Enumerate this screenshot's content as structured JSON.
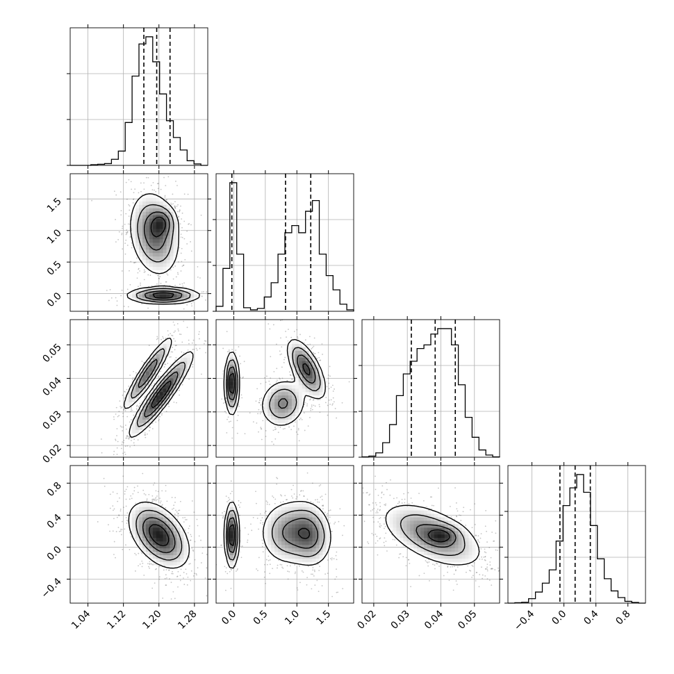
{
  "chart_data": {
    "type": "corner",
    "grid": true,
    "colors": {
      "lines": "#000000",
      "points": "#555555",
      "grid": "#b0b0b0",
      "background": "#ffffff"
    },
    "parameters": [
      {
        "id": "p0",
        "range": [
          1.0,
          1.31
        ],
        "ticks": [
          1.04,
          1.12,
          1.2,
          1.28
        ],
        "tick_labels": [
          "1.04",
          "1.12",
          "1.20",
          "1.28"
        ],
        "quantiles": [
          1.166,
          1.195,
          1.225
        ]
      },
      {
        "id": "p1",
        "range": [
          -0.28,
          1.9
        ],
        "ticks": [
          0.0,
          0.5,
          1.0,
          1.5
        ],
        "tick_labels": [
          "0.0",
          "0.5",
          "1.0",
          "1.5"
        ],
        "quantiles": [
          -0.03,
          0.82,
          1.22
        ]
      },
      {
        "id": "p2",
        "range": [
          0.0165,
          0.0575
        ],
        "ticks": [
          0.02,
          0.03,
          0.04,
          0.05
        ],
        "tick_labels": [
          "0.02",
          "0.03",
          "0.04",
          "0.05"
        ],
        "quantiles": [
          0.0312,
          0.0383,
          0.0443
        ]
      },
      {
        "id": "p3",
        "range": [
          -0.7,
          1.02
        ],
        "ticks": [
          -0.4,
          0.0,
          0.4,
          0.8
        ],
        "tick_labels": [
          "−0.4",
          "0.0",
          "0.4",
          "0.8"
        ],
        "quantiles": [
          -0.05,
          0.14,
          0.33
        ]
      }
    ],
    "histograms": [
      {
        "param": "p0",
        "bin_edges": [
          1.0,
          1.0155,
          1.031,
          1.0465,
          1.062,
          1.0775,
          1.093,
          1.1085,
          1.124,
          1.1395,
          1.155,
          1.1705,
          1.186,
          1.2015,
          1.217,
          1.2325,
          1.248,
          1.2635,
          1.279,
          1.2945,
          1.31
        ],
        "counts": [
          0,
          0,
          0,
          2,
          3,
          5,
          17,
          40,
          120,
          250,
          340,
          360,
          290,
          200,
          125,
          78,
          43,
          13,
          4,
          0
        ]
      },
      {
        "param": "p1",
        "bin_edges": [
          -0.28,
          -0.171,
          -0.062,
          0.047,
          0.156,
          0.265,
          0.374,
          0.483,
          0.592,
          0.701,
          0.81,
          0.919,
          1.028,
          1.137,
          1.246,
          1.355,
          1.464,
          1.573,
          1.682,
          1.791,
          1.9
        ],
        "counts": [
          7,
          60,
          180,
          80,
          5,
          2,
          4,
          20,
          40,
          80,
          110,
          120,
          110,
          140,
          155,
          80,
          50,
          30,
          10,
          2
        ]
      },
      {
        "param": "p2",
        "bin_edges": [
          0.0165,
          0.01855,
          0.0206,
          0.02265,
          0.0247,
          0.02675,
          0.0288,
          0.03085,
          0.0329,
          0.03495,
          0.037,
          0.03905,
          0.0411,
          0.04315,
          0.0452,
          0.04725,
          0.0493,
          0.05135,
          0.0534,
          0.05545,
          0.0575
        ],
        "counts": [
          1,
          3,
          12,
          40,
          90,
          170,
          230,
          265,
          300,
          310,
          340,
          355,
          355,
          310,
          200,
          110,
          55,
          20,
          6,
          1
        ]
      },
      {
        "param": "p3",
        "bin_edges": [
          -0.7,
          -0.614,
          -0.528,
          -0.442,
          -0.356,
          -0.27,
          -0.184,
          -0.098,
          -0.012,
          0.074,
          0.16,
          0.246,
          0.332,
          0.418,
          0.504,
          0.59,
          0.676,
          0.762,
          0.848,
          0.934,
          1.02
        ],
        "counts": [
          0,
          2,
          4,
          20,
          50,
          90,
          150,
          280,
          440,
          520,
          580,
          500,
          350,
          200,
          110,
          55,
          25,
          8,
          3,
          0
        ]
      }
    ],
    "pairs": [
      {
        "x": "p0",
        "y": "p1",
        "blobs": [
          {
            "cx": 1.19,
            "cy": 0.95,
            "sx": 0.028,
            "sy": 0.33,
            "rho": -0.2,
            "peak": 0.75
          },
          {
            "cx": 1.208,
            "cy": 1.13,
            "sx": 0.016,
            "sy": 0.13,
            "rho": 0.0,
            "peak": 0.45
          },
          {
            "cx": 1.21,
            "cy": -0.03,
            "sx": 0.04,
            "sy": 0.065,
            "rho": 0.0,
            "peak": 1.0
          }
        ]
      },
      {
        "x": "p0",
        "y": "p2",
        "blobs": [
          {
            "cx": 1.205,
            "cy": 0.0352,
            "sx": 0.035,
            "sy": 0.0062,
            "rho": 0.92,
            "peak": 1.0
          },
          {
            "cx": 1.175,
            "cy": 0.0415,
            "sx": 0.028,
            "sy": 0.0055,
            "rho": 0.92,
            "peak": 0.75
          }
        ]
      },
      {
        "x": "p1",
        "y": "p2",
        "blobs": [
          {
            "cx": -0.03,
            "cy": 0.0385,
            "sx": 0.055,
            "sy": 0.0045,
            "rho": 0.0,
            "peak": 1.0
          },
          {
            "cx": 0.78,
            "cy": 0.0325,
            "sx": 0.18,
            "sy": 0.0036,
            "rho": 0.1,
            "peak": 0.55
          },
          {
            "cx": 1.15,
            "cy": 0.0428,
            "sx": 0.15,
            "sy": 0.0044,
            "rho": -0.65,
            "peak": 0.8
          }
        ]
      },
      {
        "x": "p0",
        "y": "p3",
        "blobs": [
          {
            "cx": 1.2,
            "cy": 0.15,
            "sx": 0.033,
            "sy": 0.2,
            "rho": -0.45,
            "peak": 1.0
          }
        ]
      },
      {
        "x": "p1",
        "y": "p3",
        "blobs": [
          {
            "cx": -0.03,
            "cy": 0.15,
            "sx": 0.055,
            "sy": 0.2,
            "rho": 0.0,
            "peak": 1.0
          },
          {
            "cx": 0.85,
            "cy": 0.18,
            "sx": 0.22,
            "sy": 0.2,
            "rho": 0.0,
            "peak": 0.5
          },
          {
            "cx": 1.2,
            "cy": 0.16,
            "sx": 0.18,
            "sy": 0.2,
            "rho": -0.1,
            "peak": 0.6
          }
        ]
      },
      {
        "x": "p2",
        "y": "p3",
        "blobs": [
          {
            "cx": 0.0375,
            "cy": 0.15,
            "sx": 0.0075,
            "sy": 0.2,
            "rho": -0.55,
            "peak": 1.0
          },
          {
            "cx": 0.0405,
            "cy": 0.15,
            "sx": 0.003,
            "sy": 0.07,
            "rho": 0.0,
            "peak": 0.6
          }
        ]
      }
    ],
    "contour_levels": [
      0.12,
      0.3,
      0.55,
      0.8
    ]
  }
}
